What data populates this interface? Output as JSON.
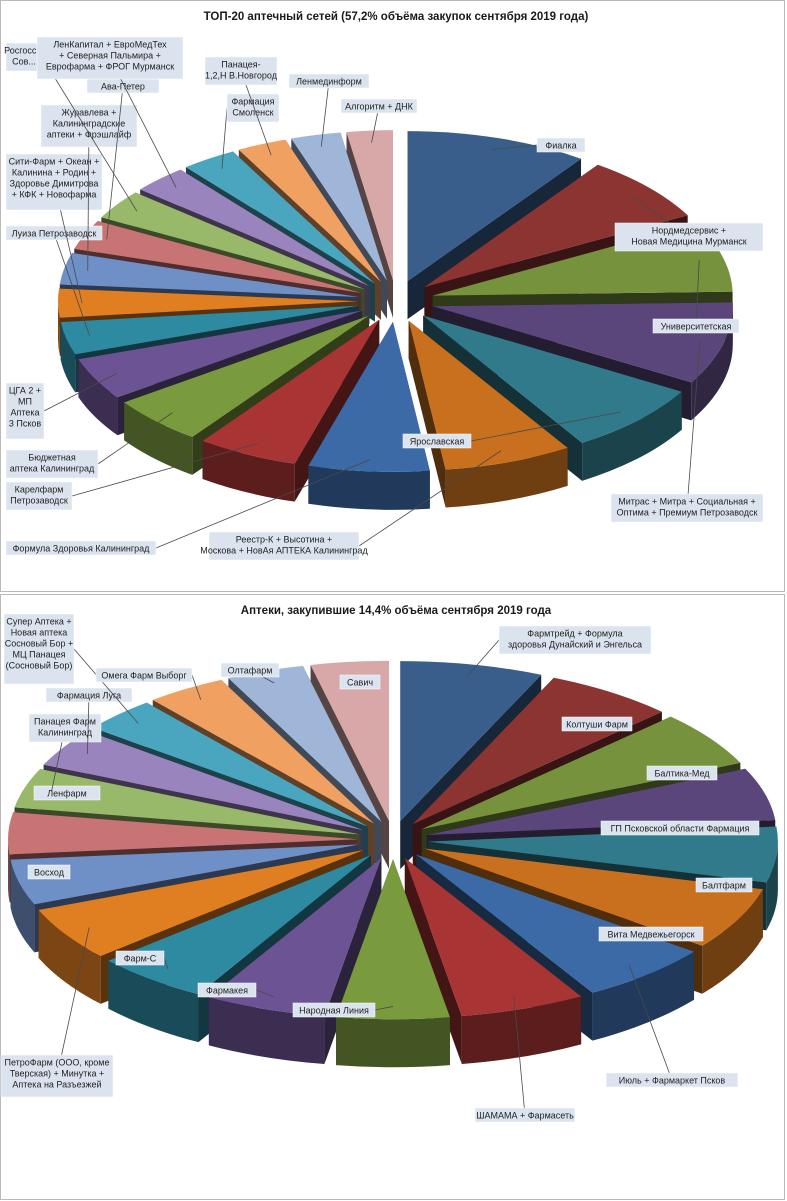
{
  "chart_data": [
    {
      "type": "pie",
      "title": "ТОП-20 аптечный сетей (57,2% объёма закупок сентября 2019 года)",
      "colors": [
        "#3a5e8c",
        "#8b3431",
        "#76923c",
        "#5a467a",
        "#317a8b",
        "#c9701f",
        "#3c6aa6",
        "#a83434",
        "#7a9a3e",
        "#6c5494",
        "#2e8aa0",
        "#e07f22",
        "#6f8fc7",
        "#c97474",
        "#98b86a",
        "#9a84bd",
        "#4aa6bf",
        "#f0a060",
        "#9fb6d9",
        "#d8a8a8"
      ],
      "slices": [
        {
          "label": "Фиалка",
          "value": 9.5
        },
        {
          "label": "Нордмедсервис + Новая Медицина Мурманск",
          "value": 7.0
        },
        {
          "label": "Университетская",
          "value": 7.3
        },
        {
          "label": "Митрас + Митра + Социальная + Оптима + Премиум Петрозаводск",
          "value": 8.6
        },
        {
          "label": "Ярославская",
          "value": 7.4
        },
        {
          "label": "Реестр-К + Высотина + Москова + НовАя АПТЕКА Калининград",
          "value": 6.7
        },
        {
          "label": "Формула Здоровья Калининград",
          "value": 6.3
        },
        {
          "label": "Карелфарм Петрозаводск",
          "value": 5.3
        },
        {
          "label": "Бюджетная аптека Калининград",
          "value": 5.0
        },
        {
          "label": "ЦГА 2 + МП Аптека 3 Псков",
          "value": 4.4
        },
        {
          "label": "Луиза Петрозаводск",
          "value": 3.4
        },
        {
          "label": "Сити-Фарм + Океан + Калинина + Родин + Здоровье Димитрова + КФК + Новофарма",
          "value": 3.0
        },
        {
          "label": "Журавлева + Калининградские аптеки + Фрэшлайф",
          "value": 3.3
        },
        {
          "label": "Ава-Петер",
          "value": 3.1
        },
        {
          "label": "Росгосс... Сов...",
          "value": 3.1
        },
        {
          "label": "ЛенКапитал + ЕвроМедТех + Северная Пальмира + Еврофарма + ФРОГ Мурманск",
          "value": 2.9
        },
        {
          "label": "Фармация Смоленск",
          "value": 2.9
        },
        {
          "label": "Панацея- 1,2,Н В.Новгород",
          "value": 2.6
        },
        {
          "label": "Ленмединформ",
          "value": 2.6
        },
        {
          "label": "Алгоритм + ДНК",
          "value": 2.4
        }
      ]
    },
    {
      "type": "pie",
      "title": "Аптеки, закупившие 14,4% объёма сентября 2019 года",
      "colors": [
        "#3a5e8c",
        "#8b3431",
        "#76923c",
        "#5a467a",
        "#317a8b",
        "#c9701f",
        "#3c6aa6",
        "#a83434",
        "#7a9a3e",
        "#6c5494",
        "#2e8aa0",
        "#e07f22",
        "#6f8fc7",
        "#c97474",
        "#98b86a",
        "#9a84bd",
        "#4aa6bf",
        "#f0a060",
        "#9fb6d9",
        "#d8a8a8"
      ],
      "slices": [
        {
          "label": "Фармтрейд + Формула здоровья Дунайский и Энгельса",
          "value": 6.6
        },
        {
          "label": "Колтуши Фарм",
          "value": 6.0
        },
        {
          "label": "Балтика-Мед",
          "value": 5.6
        },
        {
          "label": "ГП Псковской области Фармация",
          "value": 5.3
        },
        {
          "label": "Балтфарм",
          "value": 5.6
        },
        {
          "label": "Вита Медвежьегорск",
          "value": 6.3
        },
        {
          "label": "Июль + Фармаркет Псков",
          "value": 6.2
        },
        {
          "label": "ШАМАМА + Фармасеть",
          "value": 5.8
        },
        {
          "label": "Народная Линия",
          "value": 5.2
        },
        {
          "label": "Фармакея",
          "value": 5.6
        },
        {
          "label": "Фарм-С",
          "value": 5.3
        },
        {
          "label": "ПетроФарм (ООО, кроме Тверская) + Минутка + Аптека на Разъезжей",
          "value": 5.4
        },
        {
          "label": "Восход",
          "value": 4.6
        },
        {
          "label": "Ленфарм",
          "value": 4.2
        },
        {
          "label": "Панацея Фарм Калининград",
          "value": 4.0
        },
        {
          "label": "Фармация Луга",
          "value": 3.9
        },
        {
          "label": "Супер Аптека + Новая аптека Сосновый Бор + МЦ Панацея (Сосновый Бор)",
          "value": 3.5
        },
        {
          "label": "Омега Фарм Выборг",
          "value": 3.7
        },
        {
          "label": "Олтафарм",
          "value": 3.6
        },
        {
          "label": "Савич",
          "value": 3.6
        }
      ]
    }
  ]
}
